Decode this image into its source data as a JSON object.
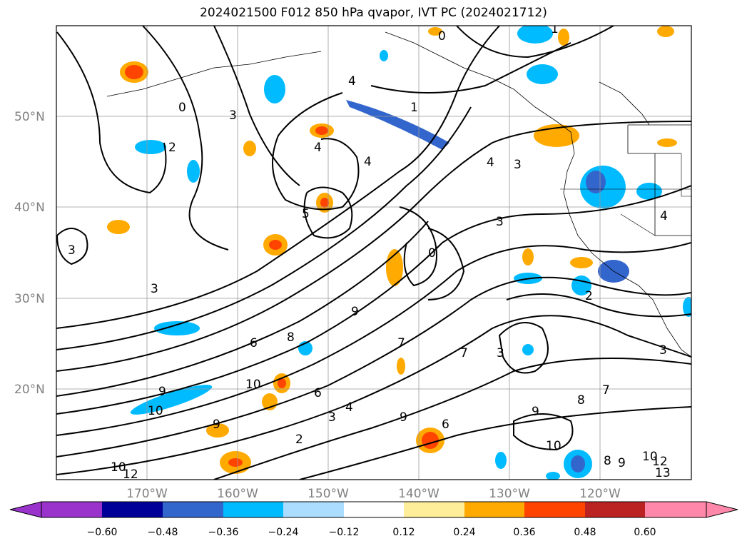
{
  "title": "2024021500 F012 850 hPa qvapor, IVT PC (2024021712)",
  "map": {
    "lat_labels": [
      "50°N",
      "40°N",
      "30°N",
      "20°N"
    ],
    "lon_labels": [
      "170°W",
      "160°W",
      "150°W",
      "140°W",
      "130°W",
      "120°W"
    ],
    "contour_labels": [
      "0",
      "1",
      "0",
      "2",
      "3",
      "4",
      "4",
      "5",
      "4",
      "3",
      "3",
      "4",
      "0",
      "3",
      "3",
      "4",
      "9",
      "8",
      "6",
      "7",
      "7",
      "3",
      "9",
      "10",
      "9",
      "10",
      "6",
      "3",
      "2",
      "4",
      "9",
      "6",
      "8",
      "7",
      "9",
      "10",
      "8",
      "9",
      "10",
      "12",
      "13",
      "10",
      "12",
      "2",
      "3",
      "1"
    ]
  },
  "colorbar": {
    "ticks": [
      "−0.60",
      "−0.48",
      "−0.36",
      "−0.24",
      "−0.12",
      "0.12",
      "0.24",
      "0.36",
      "0.48",
      "0.60"
    ],
    "colors": [
      "#9933cc",
      "#000099",
      "#3366cc",
      "#00bbff",
      "#aaddff",
      "#ffffff",
      "#ffee99",
      "#ffaa00",
      "#ff4400",
      "#bb2222",
      "#ff88aa"
    ]
  }
}
